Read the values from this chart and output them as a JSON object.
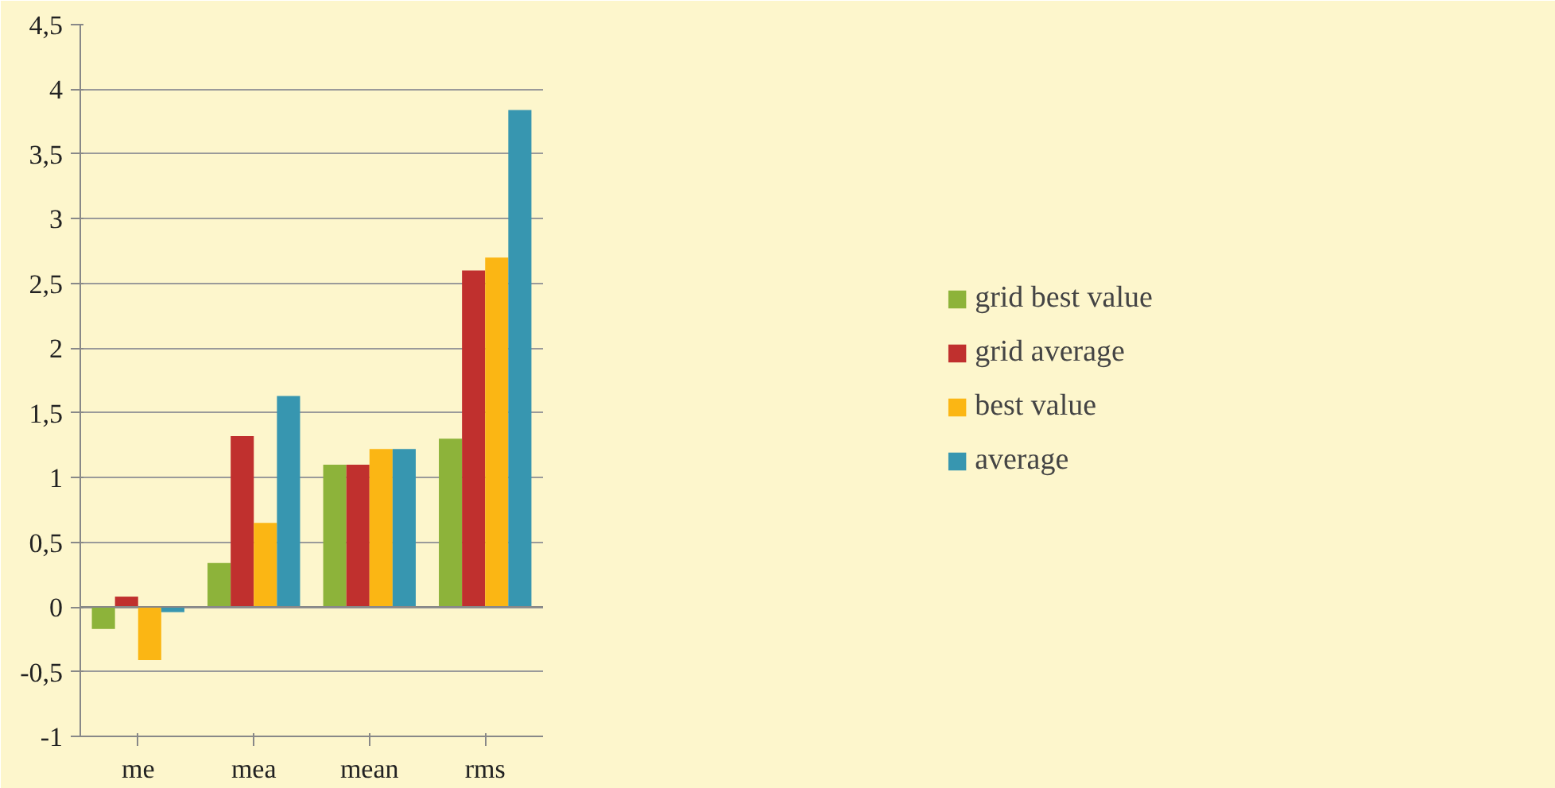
{
  "chart_data": {
    "type": "bar",
    "categories": [
      "me",
      "mea",
      "mean",
      "rms"
    ],
    "series": [
      {
        "name": "grid best value",
        "color": "#8db33a",
        "values": [
          -0.17,
          0.34,
          1.1,
          1.3
        ]
      },
      {
        "name": "grid average",
        "color": "#c0302e",
        "values": [
          0.08,
          1.32,
          1.1,
          2.6
        ]
      },
      {
        "name": "best value",
        "color": "#fbb614",
        "values": [
          -0.41,
          0.65,
          1.22,
          2.7
        ]
      },
      {
        "name": "average",
        "color": "#3796b0",
        "values": [
          -0.04,
          1.63,
          1.22,
          3.84
        ]
      }
    ],
    "ylim": [
      -1,
      4.5
    ],
    "yticks": [
      {
        "value": -1,
        "label": "-1"
      },
      {
        "value": -0.5,
        "label": "-0,5"
      },
      {
        "value": 0,
        "label": "0"
      },
      {
        "value": 0.5,
        "label": "0,5"
      },
      {
        "value": 1,
        "label": "1"
      },
      {
        "value": 1.5,
        "label": "1,5"
      },
      {
        "value": 2,
        "label": "2"
      },
      {
        "value": 2.5,
        "label": "2,5"
      },
      {
        "value": 3,
        "label": "3"
      },
      {
        "value": 3.5,
        "label": "3,5"
      },
      {
        "value": 4,
        "label": "4"
      },
      {
        "value": 4.5,
        "label": "4,5"
      }
    ],
    "grid": "y",
    "legend": "right"
  }
}
